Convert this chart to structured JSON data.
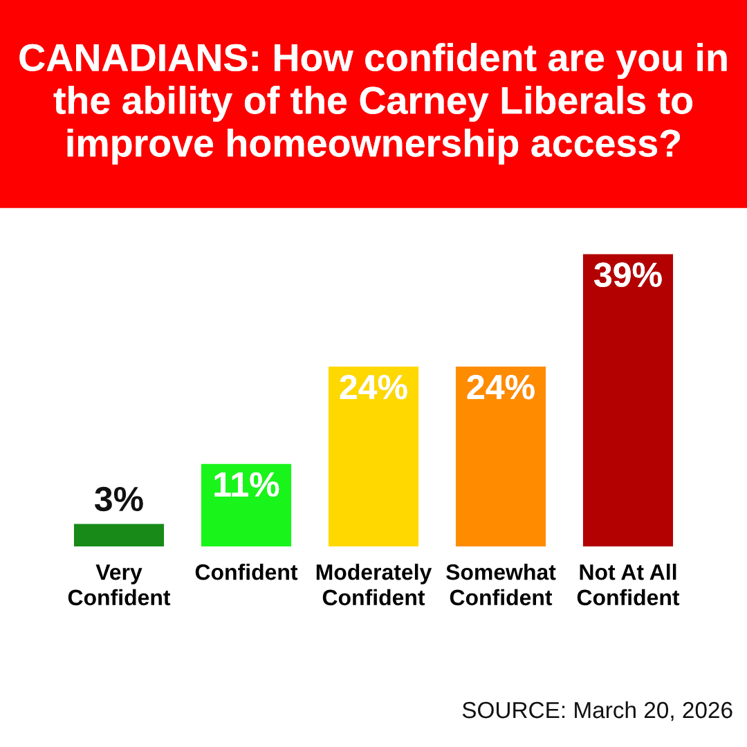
{
  "chart_data": {
    "type": "bar",
    "title": "CANADIANS: How confident are you in the ability of the Carney Liberals to improve homeownership access?",
    "categories": [
      "Very\nConfident",
      "Confident",
      "Moderately\nConfident",
      "Somewhat\nConfident",
      "Not At All\nConfident"
    ],
    "values": [
      3,
      11,
      24,
      24,
      39
    ],
    "colors": [
      "#188a18",
      "#19f51a",
      "#ffd800",
      "#ff8c00",
      "#b30000"
    ],
    "value_labels": [
      "3%",
      "11%",
      "24%",
      "24%",
      "39%"
    ],
    "grid": false,
    "legend": false,
    "annotations": [
      "SOURCE: March 20, 2026"
    ]
  }
}
